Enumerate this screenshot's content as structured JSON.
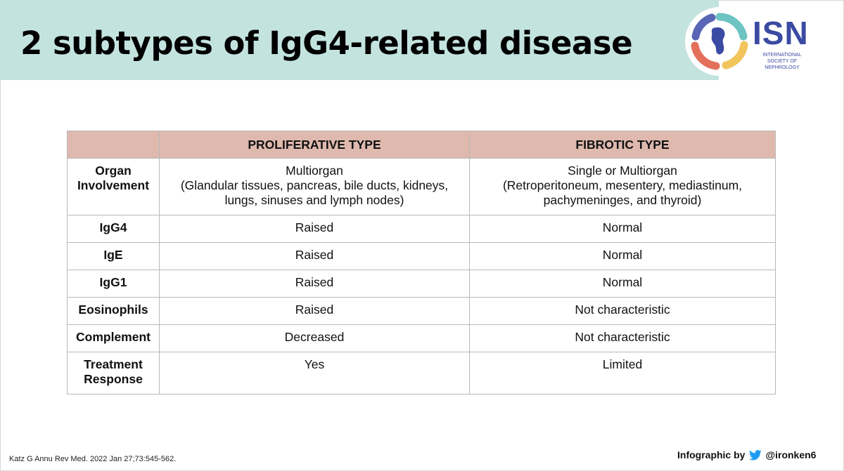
{
  "slide": {
    "title": "2 subtypes of IgG4-related disease"
  },
  "logo": {
    "abbr": "ISN",
    "subtitle": "INTERNATIONAL SOCIETY OF NEPHROLOGY",
    "colors": [
      "#3b4aa2",
      "#e2705a",
      "#f2c45c",
      "#6ec4c2",
      "#5a66b5"
    ]
  },
  "table": {
    "header": [
      "",
      "PROLIFERATIVE TYPE",
      "FIBROTIC TYPE"
    ],
    "header_color": "#dfb9ae",
    "rows": [
      {
        "label_lines": [
          "Organ",
          "Involvement"
        ],
        "proliferative_lines": [
          "Multiorgan",
          "(Glandular tissues, pancreas, bile ducts, kidneys,",
          "lungs, sinuses and lymph nodes)"
        ],
        "fibrotic_lines": [
          "Single or Multiorgan",
          "(Retroperitoneum, mesentery, mediastinum,",
          "pachymeninges, and thyroid)"
        ]
      },
      {
        "label": "IgG4",
        "proliferative": "Raised",
        "fibrotic": "Normal"
      },
      {
        "label": "IgE",
        "proliferative": "Raised",
        "fibrotic": "Normal"
      },
      {
        "label": "IgG1",
        "proliferative": "Raised",
        "fibrotic": "Normal"
      },
      {
        "label": "Eosinophils",
        "proliferative": "Raised",
        "fibrotic": "Not characteristic"
      },
      {
        "label": "Complement",
        "proliferative": "Decreased",
        "fibrotic": "Not characteristic"
      },
      {
        "label_lines": [
          "Treatment",
          "Response"
        ],
        "proliferative": "Yes",
        "fibrotic": "Limited"
      }
    ]
  },
  "footer": {
    "citation": "Katz G Annu Rev Med. 2022 Jan 27;73:545-562.",
    "credit_prefix": "Infographic by",
    "credit_handle": "@ironken6",
    "credit_icon": "twitter-bird-icon",
    "twitter_color": "#1d9bf0"
  },
  "colors": {
    "header_band": "#c3e3df"
  }
}
